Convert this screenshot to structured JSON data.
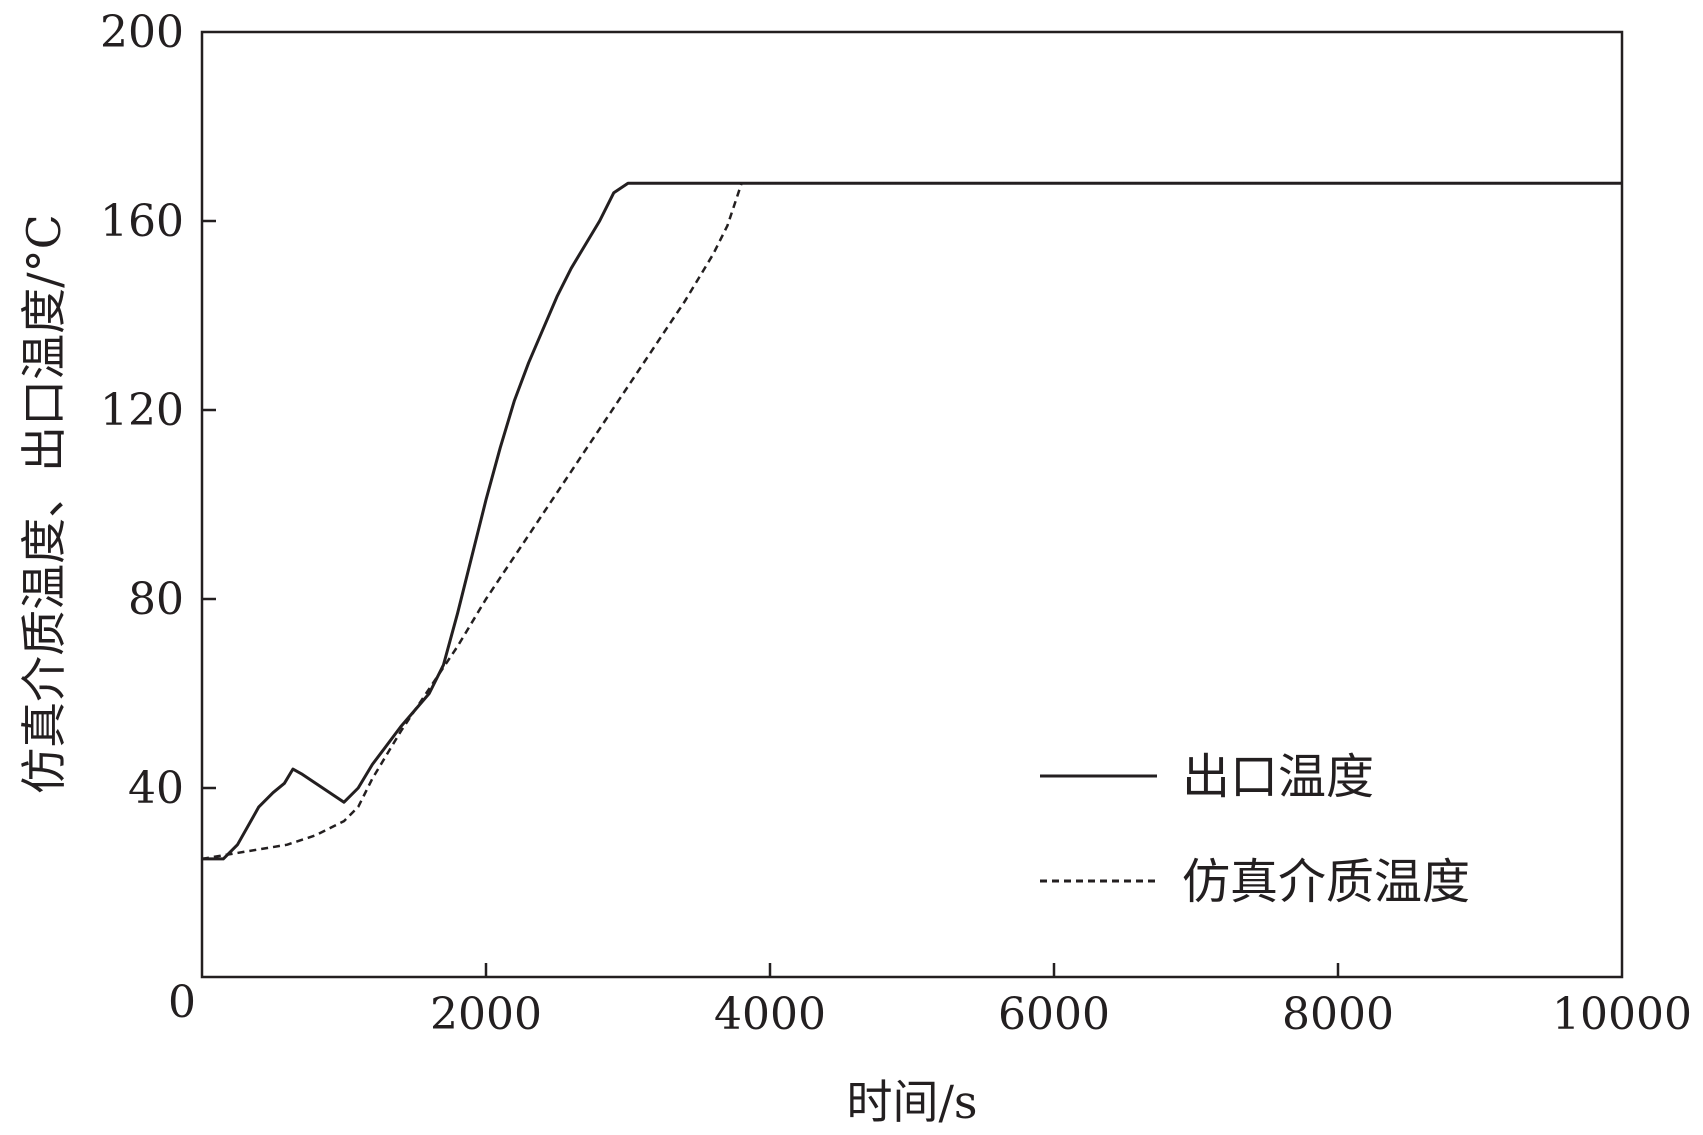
{
  "chart_data": {
    "type": "line",
    "title": "",
    "xlabel": "时间/s",
    "ylabel": "仿真介质温度、出口温度/°C",
    "xlim": [
      0,
      10000
    ],
    "ylim": [
      0,
      200
    ],
    "xticks": [
      0,
      2000,
      4000,
      6000,
      8000,
      10000
    ],
    "yticks": [
      40,
      80,
      120,
      160,
      200
    ],
    "x_tick_labels": [
      "0",
      "2000",
      "4000",
      "6000",
      "8000",
      "10000"
    ],
    "y_tick_labels": [
      "40",
      "80",
      "120",
      "160",
      "200"
    ],
    "grid": false,
    "legend_position": "bottom-right",
    "line_color": "#231f20",
    "series": [
      {
        "name": "出口温度",
        "style": "solid",
        "x": [
          0,
          150,
          250,
          400,
          500,
          580,
          640,
          700,
          800,
          900,
          1000,
          1100,
          1200,
          1400,
          1600,
          1700,
          1800,
          1900,
          2000,
          2100,
          2200,
          2300,
          2400,
          2500,
          2600,
          2700,
          2800,
          2900,
          3000,
          3050,
          3100,
          3200,
          4000,
          5000,
          6000,
          7000,
          8000,
          9000,
          10000
        ],
        "y": [
          25,
          25,
          28,
          36,
          39,
          41,
          44,
          43,
          41,
          39,
          37,
          40,
          45,
          53,
          60,
          66,
          77,
          89,
          101,
          112,
          122,
          130,
          137,
          144,
          150,
          155,
          160,
          166,
          168,
          168,
          168,
          168,
          168,
          168,
          168,
          168,
          168,
          168,
          168
        ]
      },
      {
        "name": "仿真介质温度",
        "style": "dashed",
        "x": [
          0,
          200,
          400,
          600,
          800,
          1000,
          1100,
          1200,
          1400,
          1600,
          1800,
          2000,
          2200,
          2400,
          2600,
          2800,
          3000,
          3200,
          3400,
          3600,
          3700,
          3800,
          4000,
          5000,
          6000,
          7000,
          8000,
          9000,
          10000
        ],
        "y": [
          25,
          26,
          27,
          28,
          30,
          33,
          36,
          42,
          52,
          61,
          70,
          80,
          89,
          98,
          107,
          116,
          125,
          134,
          143,
          153,
          159,
          168,
          168,
          168,
          168,
          168,
          168,
          168,
          168
        ]
      }
    ]
  }
}
